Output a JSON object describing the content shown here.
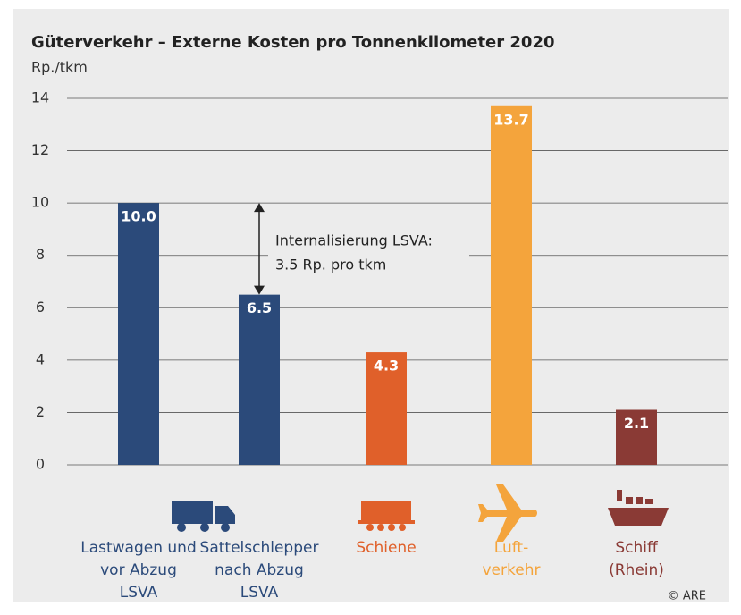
{
  "chart_data": {
    "type": "bar",
    "title": "Güterverkehr – Externe Kosten pro Tonnenkilometer 2020",
    "subtitle": "Rp./tkm",
    "categories": [
      [
        "Lastwagen und",
        "vor Abzug",
        "LSVA"
      ],
      [
        "Sattelschlepper",
        "nach Abzug",
        "LSVA"
      ],
      [
        "Schiene"
      ],
      [
        "Luft-",
        "verkehr"
      ],
      [
        "Schiff",
        "(Rhein)"
      ]
    ],
    "values": [
      10.0,
      6.5,
      4.3,
      13.7,
      2.1
    ],
    "value_labels": [
      "10.0",
      "6.5",
      "4.3",
      "13.7",
      "2.1"
    ],
    "colors": [
      "#2b4a7a",
      "#2b4a7a",
      "#e0602a",
      "#f4a43c",
      "#8a3a35"
    ],
    "ylim": [
      0,
      14
    ],
    "yticks": [
      0,
      2,
      4,
      6,
      8,
      10,
      12,
      14
    ],
    "grid": true,
    "annotation": [
      "Internalisierung LSVA:",
      "3.5 Rp. pro tkm"
    ],
    "source": "© ARE"
  }
}
